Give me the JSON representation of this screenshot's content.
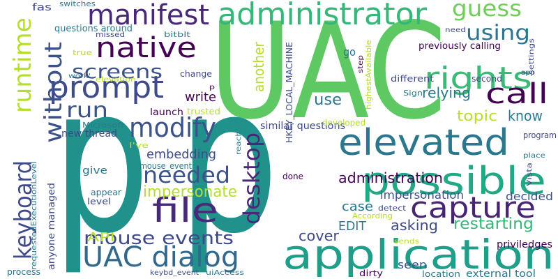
{
  "word_cloud": {
    "words": [
      {
        "text": "UAC",
        "color": "#5ec962"
      },
      {
        "text": "p",
        "color": "#21918c"
      },
      {
        "text": "p",
        "color": "#21918c"
      },
      {
        "text": "application",
        "color": "#1f9e89"
      },
      {
        "text": "possible",
        "color": "#22a884"
      },
      {
        "text": "elevated",
        "color": "#2a788e"
      },
      {
        "text": "administrator",
        "color": "#35b779"
      },
      {
        "text": "manifest",
        "color": "#482878"
      },
      {
        "text": "native",
        "color": "#440154"
      },
      {
        "text": "prompt",
        "color": "#3e4a89"
      },
      {
        "text": "rights",
        "color": "#3aba76"
      },
      {
        "text": "guess",
        "color": "#6ece58"
      },
      {
        "text": "using",
        "color": "#2b758e"
      },
      {
        "text": "call",
        "color": "#440154"
      },
      {
        "text": "capture",
        "color": "#482475"
      },
      {
        "text": "file",
        "color": "#482878"
      },
      {
        "text": "UAC dialog",
        "color": "#31688e"
      },
      {
        "text": "modify",
        "color": "#3b528b"
      },
      {
        "text": "screens",
        "color": "#3b528b"
      },
      {
        "text": "runtime",
        "color": "#b5de2b"
      },
      {
        "text": "without",
        "color": "#3b528b"
      },
      {
        "text": "keyboard",
        "color": "#3e4a89"
      },
      {
        "text": "run",
        "color": "#3b528b"
      },
      {
        "text": "desktop",
        "color": "#482878"
      },
      {
        "text": "needed",
        "color": "#3b528b"
      },
      {
        "text": "impersonate",
        "color": "#b5de2b"
      },
      {
        "text": "embedding",
        "color": "#3e4a89"
      },
      {
        "text": "mouse events",
        "color": "#3e4a89"
      },
      {
        "text": "API",
        "color": "#b5de2b"
      },
      {
        "text": "another",
        "color": "#b5de2b"
      },
      {
        "text": "relying",
        "color": "#2a788e"
      },
      {
        "text": "write",
        "color": "#440154"
      },
      {
        "text": "topic",
        "color": "#b5de2b"
      },
      {
        "text": "know",
        "color": "#2a788e"
      },
      {
        "text": "use",
        "color": "#2a788e"
      },
      {
        "text": "administration",
        "color": "#440154"
      },
      {
        "text": "impersonation",
        "color": "#3b528b"
      },
      {
        "text": "decided",
        "color": "#3b528b"
      },
      {
        "text": "case",
        "color": "#2a788e"
      },
      {
        "text": "restarting",
        "color": "#35b779"
      },
      {
        "text": "asking",
        "color": "#3e4a89"
      },
      {
        "text": "EDIT",
        "color": "#2a788e"
      },
      {
        "text": "cover",
        "color": "#3e4a89"
      },
      {
        "text": "seen",
        "color": "#3b528b"
      },
      {
        "text": "external tool",
        "color": "#2a788e"
      },
      {
        "text": "location",
        "color": "#2a788e"
      },
      {
        "text": "dirty",
        "color": "#440154"
      },
      {
        "text": "sends",
        "color": "#b5de2b"
      },
      {
        "text": "priviledges",
        "color": "#440154"
      },
      {
        "text": "According",
        "color": "#b5de2b"
      },
      {
        "text": "detect",
        "color": "#3e4a89"
      },
      {
        "text": "similar questions",
        "color": "#3e4a89"
      },
      {
        "text": "developed",
        "color": "#b5de2b"
      },
      {
        "text": "new thread",
        "color": "#3e4a89"
      },
      {
        "text": "Microsoft",
        "color": "#2a788e"
      },
      {
        "text": "I've",
        "color": "#b5de2b"
      },
      {
        "text": "give",
        "color": "#2a788e"
      },
      {
        "text": "appear",
        "color": "#2a788e"
      },
      {
        "text": "level",
        "color": "#3e4a89"
      },
      {
        "text": "mouse_event",
        "color": "#2a788e"
      },
      {
        "text": "done",
        "color": "#440154"
      },
      {
        "text": "launch",
        "color": "#440154"
      },
      {
        "text": "trusted",
        "color": "#b5de2b"
      },
      {
        "text": "change",
        "color": "#3e4a89"
      },
      {
        "text": "work'",
        "color": "#2a788e"
      },
      {
        "text": "elevation",
        "color": "#b5de2b"
      },
      {
        "text": "true",
        "color": "#b5de2b"
      },
      {
        "text": "missed",
        "color": "#3e4a89"
      },
      {
        "text": "questions around",
        "color": "#2a788e"
      },
      {
        "text": "fas",
        "color": "#3e4a89"
      },
      {
        "text": "switches",
        "color": "#2a788e"
      },
      {
        "text": "bitblt",
        "color": "#2a788e"
      },
      {
        "text": "go",
        "color": "#2a788e"
      },
      {
        "text": "HKEY_LOCAL_MACHINE",
        "color": "#3e4a89"
      },
      {
        "text": "reach",
        "color": "#2a788e"
      },
      {
        "text": "step",
        "color": "#440154"
      },
      {
        "text": "highestAvailable",
        "color": "#b5de2b"
      },
      {
        "text": "different",
        "color": "#3e4a89"
      },
      {
        "text": "second",
        "color": "#3e4a89"
      },
      {
        "text": "Sign",
        "color": "#2a788e"
      },
      {
        "text": "previously calling",
        "color": "#440154"
      },
      {
        "text": "need",
        "color": "#3e4a89"
      },
      {
        "text": "settings",
        "color": "#3e4a89"
      },
      {
        "text": "app",
        "color": "#3e4a89"
      },
      {
        "text": "program",
        "color": "#3e4a89"
      },
      {
        "text": "Vista",
        "color": "#3e4a89"
      },
      {
        "text": "place",
        "color": "#2a788e"
      },
      {
        "text": "requestedExecutionLevel",
        "color": "#2a788e"
      },
      {
        "text": "anyone managed",
        "color": "#3e4a89"
      },
      {
        "text": "process",
        "color": "#2a788e"
      },
      {
        "text": "keybd_event",
        "color": "#3e4a89"
      },
      {
        "text": "uiAccess",
        "color": "#2a788e"
      },
      {
        "text": "p",
        "color": "#440154"
      }
    ]
  }
}
